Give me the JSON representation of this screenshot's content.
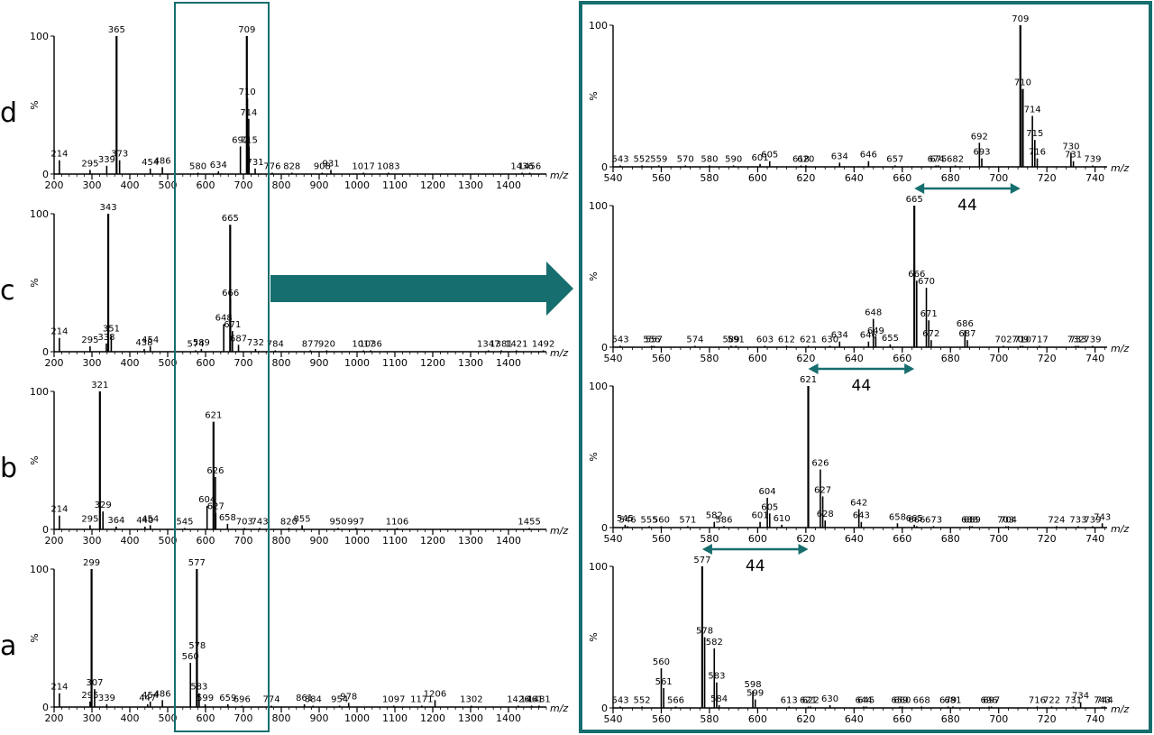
{
  "accent_color": "#176e6e",
  "axis_unit_label": "m/z",
  "y_axis_label": "%",
  "y_max_label": "100",
  "y_zero_label": "0",
  "difference_label": "44",
  "chart_data": [
    {
      "type": "bar",
      "panel": "full",
      "row_label": "d",
      "xlim": [
        200,
        1500
      ],
      "ylim": [
        0,
        100
      ],
      "x_ticks": [
        200,
        300,
        400,
        500,
        600,
        700,
        800,
        900,
        1000,
        1100,
        1200,
        1300,
        1400
      ],
      "labeled_peaks": [
        {
          "mz": 214,
          "intensity": 10
        },
        {
          "mz": 295,
          "intensity": 3
        },
        {
          "mz": 339,
          "intensity": 6
        },
        {
          "mz": 365,
          "intensity": 100
        },
        {
          "mz": 373,
          "intensity": 10
        },
        {
          "mz": 454,
          "intensity": 4
        },
        {
          "mz": 486,
          "intensity": 5
        },
        {
          "mz": 580,
          "intensity": 1
        },
        {
          "mz": 634,
          "intensity": 2
        },
        {
          "mz": 692,
          "intensity": 20
        },
        {
          "mz": 709,
          "intensity": 100
        },
        {
          "mz": 710,
          "intensity": 55
        },
        {
          "mz": 714,
          "intensity": 40
        },
        {
          "mz": 715,
          "intensity": 20
        },
        {
          "mz": 731,
          "intensity": 4
        },
        {
          "mz": 776,
          "intensity": 1
        },
        {
          "mz": 828,
          "intensity": 1
        },
        {
          "mz": 908,
          "intensity": 1
        },
        {
          "mz": 931,
          "intensity": 3
        },
        {
          "mz": 1017,
          "intensity": 1
        },
        {
          "mz": 1083,
          "intensity": 1
        },
        {
          "mz": 1436,
          "intensity": 1
        },
        {
          "mz": 1456,
          "intensity": 1
        }
      ]
    },
    {
      "type": "bar",
      "panel": "full",
      "row_label": "c",
      "xlim": [
        200,
        1500
      ],
      "ylim": [
        0,
        100
      ],
      "x_ticks": [
        200,
        300,
        400,
        500,
        600,
        700,
        800,
        900,
        1000,
        1100,
        1200,
        1300,
        1400
      ],
      "labeled_peaks": [
        {
          "mz": 214,
          "intensity": 10
        },
        {
          "mz": 295,
          "intensity": 4
        },
        {
          "mz": 338,
          "intensity": 6
        },
        {
          "mz": 343,
          "intensity": 100
        },
        {
          "mz": 351,
          "intensity": 12
        },
        {
          "mz": 438,
          "intensity": 2
        },
        {
          "mz": 454,
          "intensity": 4
        },
        {
          "mz": 574,
          "intensity": 1
        },
        {
          "mz": 589,
          "intensity": 2
        },
        {
          "mz": 648,
          "intensity": 20
        },
        {
          "mz": 665,
          "intensity": 92
        },
        {
          "mz": 666,
          "intensity": 38
        },
        {
          "mz": 671,
          "intensity": 15
        },
        {
          "mz": 687,
          "intensity": 5
        },
        {
          "mz": 732,
          "intensity": 2
        },
        {
          "mz": 784,
          "intensity": 1
        },
        {
          "mz": 877,
          "intensity": 1
        },
        {
          "mz": 920,
          "intensity": 1
        },
        {
          "mz": 1017,
          "intensity": 1
        },
        {
          "mz": 1036,
          "intensity": 1
        },
        {
          "mz": 1347,
          "intensity": 1
        },
        {
          "mz": 1381,
          "intensity": 1
        },
        {
          "mz": 1421,
          "intensity": 1
        },
        {
          "mz": 1492,
          "intensity": 1
        }
      ]
    },
    {
      "type": "bar",
      "panel": "full",
      "row_label": "b",
      "xlim": [
        200,
        1500
      ],
      "ylim": [
        0,
        100
      ],
      "x_ticks": [
        200,
        300,
        400,
        500,
        600,
        700,
        800,
        900,
        1000,
        1100,
        1200,
        1300,
        1400
      ],
      "labeled_peaks": [
        {
          "mz": 214,
          "intensity": 10
        },
        {
          "mz": 295,
          "intensity": 3
        },
        {
          "mz": 321,
          "intensity": 100
        },
        {
          "mz": 329,
          "intensity": 13
        },
        {
          "mz": 364,
          "intensity": 2
        },
        {
          "mz": 440,
          "intensity": 2
        },
        {
          "mz": 454,
          "intensity": 3
        },
        {
          "mz": 545,
          "intensity": 1
        },
        {
          "mz": 604,
          "intensity": 17
        },
        {
          "mz": 621,
          "intensity": 78
        },
        {
          "mz": 626,
          "intensity": 38
        },
        {
          "mz": 627,
          "intensity": 12
        },
        {
          "mz": 658,
          "intensity": 4
        },
        {
          "mz": 703,
          "intensity": 1
        },
        {
          "mz": 743,
          "intensity": 1
        },
        {
          "mz": 820,
          "intensity": 1
        },
        {
          "mz": 855,
          "intensity": 3
        },
        {
          "mz": 950,
          "intensity": 1
        },
        {
          "mz": 997,
          "intensity": 1
        },
        {
          "mz": 1106,
          "intensity": 1
        },
        {
          "mz": 1455,
          "intensity": 1
        }
      ]
    },
    {
      "type": "bar",
      "panel": "full",
      "row_label": "a",
      "xlim": [
        200,
        1500
      ],
      "ylim": [
        0,
        100
      ],
      "x_ticks": [
        200,
        300,
        400,
        500,
        600,
        700,
        800,
        900,
        1000,
        1100,
        1200,
        1300,
        1400
      ],
      "labeled_peaks": [
        {
          "mz": 214,
          "intensity": 10
        },
        {
          "mz": 295,
          "intensity": 4
        },
        {
          "mz": 299,
          "intensity": 100
        },
        {
          "mz": 307,
          "intensity": 13
        },
        {
          "mz": 339,
          "intensity": 2
        },
        {
          "mz": 447,
          "intensity": 2
        },
        {
          "mz": 454,
          "intensity": 4
        },
        {
          "mz": 486,
          "intensity": 5
        },
        {
          "mz": 560,
          "intensity": 32
        },
        {
          "mz": 577,
          "intensity": 100
        },
        {
          "mz": 578,
          "intensity": 40
        },
        {
          "mz": 583,
          "intensity": 10
        },
        {
          "mz": 599,
          "intensity": 2
        },
        {
          "mz": 659,
          "intensity": 2
        },
        {
          "mz": 696,
          "intensity": 1
        },
        {
          "mz": 774,
          "intensity": 1
        },
        {
          "mz": 861,
          "intensity": 2
        },
        {
          "mz": 884,
          "intensity": 1
        },
        {
          "mz": 954,
          "intensity": 1
        },
        {
          "mz": 978,
          "intensity": 3
        },
        {
          "mz": 1097,
          "intensity": 1
        },
        {
          "mz": 1171,
          "intensity": 1
        },
        {
          "mz": 1206,
          "intensity": 5
        },
        {
          "mz": 1302,
          "intensity": 1
        },
        {
          "mz": 1426,
          "intensity": 1
        },
        {
          "mz": 1461,
          "intensity": 1
        },
        {
          "mz": 1481,
          "intensity": 1
        }
      ]
    },
    {
      "type": "bar",
      "panel": "zoom",
      "row_label": "d",
      "xlim": [
        540,
        745
      ],
      "ylim": [
        0,
        100
      ],
      "x_ticks": [
        540,
        560,
        580,
        600,
        620,
        640,
        660,
        680,
        700,
        720,
        740
      ],
      "labeled_peaks": [
        {
          "mz": 543,
          "intensity": 1
        },
        {
          "mz": 552,
          "intensity": 1
        },
        {
          "mz": 559,
          "intensity": 1
        },
        {
          "mz": 570,
          "intensity": 1
        },
        {
          "mz": 580,
          "intensity": 1
        },
        {
          "mz": 590,
          "intensity": 1
        },
        {
          "mz": 601,
          "intensity": 2
        },
        {
          "mz": 605,
          "intensity": 4
        },
        {
          "mz": 618,
          "intensity": 1
        },
        {
          "mz": 620,
          "intensity": 1
        },
        {
          "mz": 634,
          "intensity": 3
        },
        {
          "mz": 646,
          "intensity": 4
        },
        {
          "mz": 657,
          "intensity": 1
        },
        {
          "mz": 674,
          "intensity": 1
        },
        {
          "mz": 675,
          "intensity": 1
        },
        {
          "mz": 682,
          "intensity": 1
        },
        {
          "mz": 692,
          "intensity": 17
        },
        {
          "mz": 693,
          "intensity": 6
        },
        {
          "mz": 709,
          "intensity": 100
        },
        {
          "mz": 710,
          "intensity": 55
        },
        {
          "mz": 714,
          "intensity": 36
        },
        {
          "mz": 715,
          "intensity": 19
        },
        {
          "mz": 716,
          "intensity": 6
        },
        {
          "mz": 730,
          "intensity": 10
        },
        {
          "mz": 731,
          "intensity": 4
        },
        {
          "mz": 739,
          "intensity": 1
        }
      ]
    },
    {
      "type": "bar",
      "panel": "zoom",
      "row_label": "c",
      "xlim": [
        540,
        745
      ],
      "ylim": [
        0,
        100
      ],
      "x_ticks": [
        540,
        560,
        580,
        600,
        620,
        640,
        660,
        680,
        700,
        720,
        740
      ],
      "labeled_peaks": [
        {
          "mz": 543,
          "intensity": 1
        },
        {
          "mz": 556,
          "intensity": 1
        },
        {
          "mz": 557,
          "intensity": 1
        },
        {
          "mz": 574,
          "intensity": 1
        },
        {
          "mz": 589,
          "intensity": 1
        },
        {
          "mz": 591,
          "intensity": 1
        },
        {
          "mz": 603,
          "intensity": 1
        },
        {
          "mz": 612,
          "intensity": 1
        },
        {
          "mz": 621,
          "intensity": 1
        },
        {
          "mz": 630,
          "intensity": 1
        },
        {
          "mz": 634,
          "intensity": 4
        },
        {
          "mz": 646,
          "intensity": 4
        },
        {
          "mz": 648,
          "intensity": 20
        },
        {
          "mz": 649,
          "intensity": 7
        },
        {
          "mz": 655,
          "intensity": 2
        },
        {
          "mz": 665,
          "intensity": 100
        },
        {
          "mz": 666,
          "intensity": 47
        },
        {
          "mz": 670,
          "intensity": 42
        },
        {
          "mz": 671,
          "intensity": 19
        },
        {
          "mz": 672,
          "intensity": 5
        },
        {
          "mz": 686,
          "intensity": 12
        },
        {
          "mz": 687,
          "intensity": 5
        },
        {
          "mz": 702,
          "intensity": 1
        },
        {
          "mz": 709,
          "intensity": 1
        },
        {
          "mz": 710,
          "intensity": 1
        },
        {
          "mz": 717,
          "intensity": 1
        },
        {
          "mz": 732,
          "intensity": 1
        },
        {
          "mz": 733,
          "intensity": 1
        },
        {
          "mz": 739,
          "intensity": 1
        }
      ]
    },
    {
      "type": "bar",
      "panel": "zoom",
      "row_label": "b",
      "xlim": [
        540,
        745
      ],
      "ylim": [
        0,
        100
      ],
      "x_ticks": [
        540,
        560,
        580,
        600,
        620,
        640,
        660,
        680,
        700,
        720,
        740
      ],
      "labeled_peaks": [
        {
          "mz": 545,
          "intensity": 2
        },
        {
          "mz": 546,
          "intensity": 1
        },
        {
          "mz": 555,
          "intensity": 1
        },
        {
          "mz": 560,
          "intensity": 1
        },
        {
          "mz": 571,
          "intensity": 1
        },
        {
          "mz": 582,
          "intensity": 4
        },
        {
          "mz": 586,
          "intensity": 1
        },
        {
          "mz": 601,
          "intensity": 4
        },
        {
          "mz": 604,
          "intensity": 21
        },
        {
          "mz": 605,
          "intensity": 10
        },
        {
          "mz": 610,
          "intensity": 2
        },
        {
          "mz": 621,
          "intensity": 100
        },
        {
          "mz": 626,
          "intensity": 41
        },
        {
          "mz": 627,
          "intensity": 22
        },
        {
          "mz": 628,
          "intensity": 5
        },
        {
          "mz": 642,
          "intensity": 13
        },
        {
          "mz": 643,
          "intensity": 4
        },
        {
          "mz": 658,
          "intensity": 3
        },
        {
          "mz": 665,
          "intensity": 2
        },
        {
          "mz": 666,
          "intensity": 1
        },
        {
          "mz": 673,
          "intensity": 1
        },
        {
          "mz": 688,
          "intensity": 1
        },
        {
          "mz": 689,
          "intensity": 1
        },
        {
          "mz": 703,
          "intensity": 1
        },
        {
          "mz": 704,
          "intensity": 1
        },
        {
          "mz": 724,
          "intensity": 1
        },
        {
          "mz": 733,
          "intensity": 1
        },
        {
          "mz": 739,
          "intensity": 1
        },
        {
          "mz": 743,
          "intensity": 3
        }
      ]
    },
    {
      "type": "bar",
      "panel": "zoom",
      "row_label": "a",
      "xlim": [
        540,
        745
      ],
      "ylim": [
        0,
        100
      ],
      "x_ticks": [
        540,
        560,
        580,
        600,
        620,
        640,
        660,
        680,
        700,
        720,
        740
      ],
      "labeled_peaks": [
        {
          "mz": 543,
          "intensity": 1
        },
        {
          "mz": 552,
          "intensity": 1
        },
        {
          "mz": 560,
          "intensity": 28
        },
        {
          "mz": 561,
          "intensity": 14
        },
        {
          "mz": 566,
          "intensity": 1
        },
        {
          "mz": 577,
          "intensity": 100
        },
        {
          "mz": 578,
          "intensity": 50
        },
        {
          "mz": 582,
          "intensity": 42
        },
        {
          "mz": 583,
          "intensity": 18
        },
        {
          "mz": 584,
          "intensity": 2
        },
        {
          "mz": 598,
          "intensity": 12
        },
        {
          "mz": 599,
          "intensity": 6
        },
        {
          "mz": 613,
          "intensity": 1
        },
        {
          "mz": 621,
          "intensity": 1
        },
        {
          "mz": 622,
          "intensity": 1
        },
        {
          "mz": 630,
          "intensity": 2
        },
        {
          "mz": 644,
          "intensity": 1
        },
        {
          "mz": 645,
          "intensity": 1
        },
        {
          "mz": 659,
          "intensity": 1
        },
        {
          "mz": 660,
          "intensity": 1
        },
        {
          "mz": 668,
          "intensity": 1
        },
        {
          "mz": 679,
          "intensity": 1
        },
        {
          "mz": 681,
          "intensity": 1
        },
        {
          "mz": 696,
          "intensity": 1
        },
        {
          "mz": 697,
          "intensity": 1
        },
        {
          "mz": 716,
          "intensity": 1
        },
        {
          "mz": 722,
          "intensity": 1
        },
        {
          "mz": 731,
          "intensity": 1
        },
        {
          "mz": 734,
          "intensity": 4
        },
        {
          "mz": 743,
          "intensity": 1
        },
        {
          "mz": 744,
          "intensity": 1
        }
      ]
    }
  ],
  "differences": [
    {
      "from_mz": 665,
      "to_mz": 709,
      "label": "44"
    },
    {
      "from_mz": 621,
      "to_mz": 665,
      "label": "44"
    },
    {
      "from_mz": 577,
      "to_mz": 621,
      "label": "44"
    }
  ]
}
